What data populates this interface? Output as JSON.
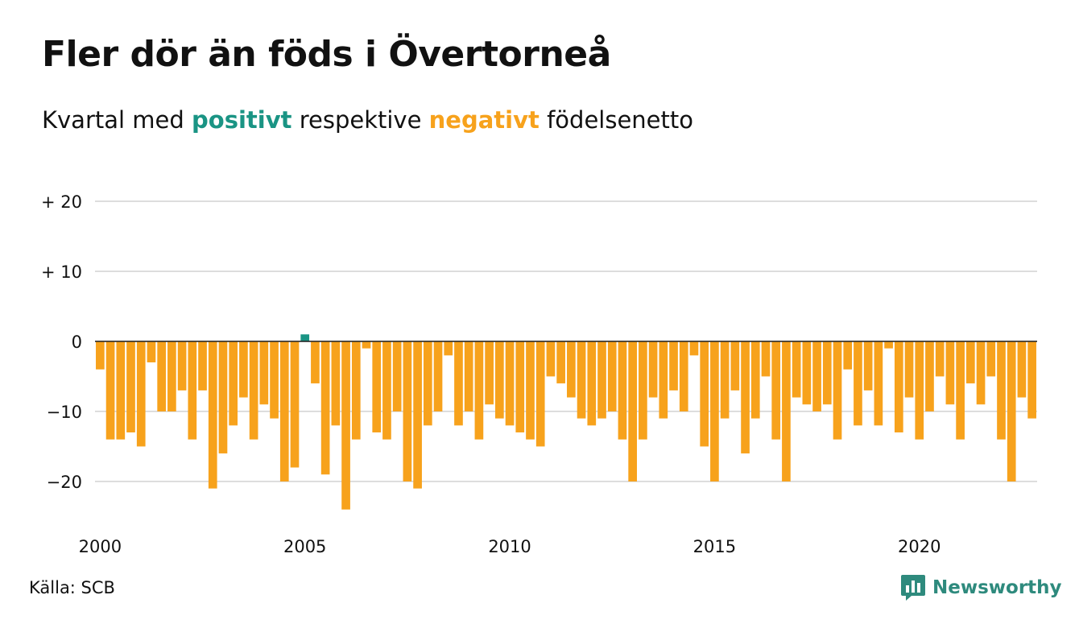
{
  "title": "Fler dör än föds i Övertorneå",
  "subtitle": {
    "prefix": "Kvartal med",
    "positive": "positivt",
    "middle": "respektive",
    "negative": "negativt",
    "suffix": "födelsenetto"
  },
  "colors": {
    "positive": "#1a9484",
    "negative": "#f7a21c",
    "grid": "#dddddd",
    "brand": "#2e8a7d"
  },
  "source": "Källa: SCB",
  "brand": {
    "name": "Newsworthy",
    "icon": "newsworthy-logo-icon"
  },
  "chart_data": {
    "type": "bar",
    "x_start": "2000 Q1",
    "x_ticks": [
      {
        "label": "2000",
        "year": 2000
      },
      {
        "label": "2005",
        "year": 2005
      },
      {
        "label": "2010",
        "year": 2010
      },
      {
        "label": "2015",
        "year": 2015
      },
      {
        "label": "2020",
        "year": 2020
      }
    ],
    "y_ticks": [
      {
        "label": "+ 20",
        "value": 20
      },
      {
        "label": "+ 10",
        "value": 10
      },
      {
        "label": "0",
        "value": 0
      },
      {
        "label": "−10",
        "value": -10
      },
      {
        "label": "−20",
        "value": -20
      }
    ],
    "ylim": [
      -25,
      20
    ],
    "grid": true,
    "values": [
      -4,
      -14,
      -14,
      -13,
      -15,
      -3,
      -10,
      -10,
      -7,
      -14,
      -7,
      -21,
      -16,
      -12,
      -8,
      -14,
      -9,
      -11,
      -20,
      -18,
      1,
      -6,
      -19,
      -12,
      -24,
      -14,
      -1,
      -13,
      -14,
      -10,
      -20,
      -21,
      -12,
      -10,
      -2,
      -12,
      -10,
      -14,
      -9,
      -11,
      -12,
      -13,
      -14,
      -15,
      -5,
      -6,
      -8,
      -11,
      -12,
      -11,
      -10,
      -14,
      -20,
      -14,
      -8,
      -11,
      -7,
      -10,
      -2,
      -15,
      -20,
      -11,
      -7,
      -16,
      -11,
      -5,
      -14,
      -20,
      -8,
      -9,
      -10,
      -9,
      -14,
      -4,
      -12,
      -7,
      -12,
      -1,
      -13,
      -8,
      -14,
      -10,
      -5,
      -9,
      -14,
      -6,
      -9,
      -5,
      -14,
      -20,
      -8,
      -11
    ]
  }
}
